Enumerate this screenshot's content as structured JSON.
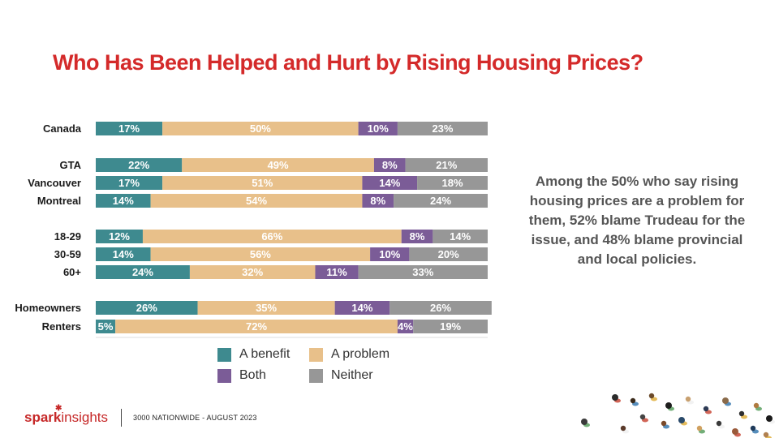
{
  "title": "Who Has Been Helped and Hurt by Rising Housing Prices?",
  "chart_data": {
    "type": "bar",
    "orientation": "horizontal",
    "stacked": true,
    "percent": true,
    "categories": [
      "Canada",
      "GTA",
      "Vancouver",
      "Montreal",
      "18-29",
      "30-59",
      "60+",
      "Homeowners",
      "Renters"
    ],
    "groups": [
      [
        "Canada"
      ],
      [
        "GTA",
        "Vancouver",
        "Montreal"
      ],
      [
        "18-29",
        "30-59",
        "60+"
      ],
      [
        "Homeowners",
        "Renters"
      ]
    ],
    "series": [
      {
        "name": "A benefit",
        "color": "#3e8a8f",
        "values": [
          17,
          22,
          17,
          14,
          12,
          14,
          24,
          26,
          5
        ],
        "labels": [
          "17%",
          "22%",
          "17%",
          "14%",
          "12%",
          "14%",
          "24%",
          "26%",
          "5%"
        ]
      },
      {
        "name": "A problem",
        "color": "#e8c08a",
        "values": [
          50,
          49,
          51,
          54,
          66,
          56,
          32,
          35,
          72
        ],
        "labels": [
          "50%",
          "49%",
          "51%",
          "54%",
          "66%",
          "56%",
          "32%",
          "35%",
          "72%"
        ]
      },
      {
        "name": "Both",
        "color": "#7b5c97",
        "values": [
          10,
          8,
          14,
          8,
          8,
          10,
          11,
          14,
          4
        ],
        "labels": [
          "10%",
          "8%",
          "14%",
          "8%",
          "8%",
          "10%",
          "11%",
          "14%",
          "4%"
        ]
      },
      {
        "name": "Neither",
        "color": "#979797",
        "values": [
          23,
          21,
          18,
          24,
          14,
          20,
          33,
          26,
          19
        ],
        "labels": [
          "23%",
          "21%",
          "18%",
          "24%",
          "14%",
          "20%",
          "33%",
          "26%",
          "19%"
        ]
      }
    ],
    "xlim": [
      0,
      100
    ],
    "legend_position": "bottom"
  },
  "legend": {
    "items": [
      {
        "label": "A benefit",
        "color": "#3e8a8f"
      },
      {
        "label": "A problem",
        "color": "#e8c08a"
      },
      {
        "label": "Both",
        "color": "#7b5c97"
      },
      {
        "label": "Neither",
        "color": "#979797"
      }
    ]
  },
  "note": "Among the 50% who say rising housing prices are a problem for them, 52% blame Trudeau for the issue, and 48% blame provincial and local policies.",
  "footer": {
    "logo_spark": "spark",
    "logo_insights": "insights",
    "sample": "3000 NATIONWIDE - AUGUST 2023"
  },
  "colors": {
    "title": "#d42a2a",
    "label_light": "#ffffff",
    "label_dark": "#ffffff"
  }
}
